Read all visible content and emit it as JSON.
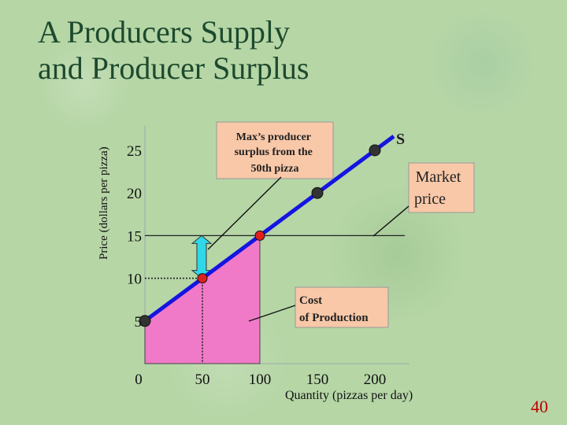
{
  "slide": {
    "title_line1": "A Producers Supply",
    "title_line2": "and Producer Surplus",
    "page_number": "40"
  },
  "chart_data": {
    "type": "line",
    "xlabel": "Quantity (pizzas per day)",
    "ylabel": "Price (dollars per pizza)",
    "xlim": [
      0,
      200
    ],
    "ylim": [
      0,
      30
    ],
    "x_ticks": [
      "0",
      "50",
      "100",
      "150",
      "200"
    ],
    "y_ticks": [
      "5",
      "10",
      "15",
      "20",
      "25"
    ],
    "series": [
      {
        "name": "S",
        "x": [
          0,
          50,
          100,
          150,
          200
        ],
        "values": [
          5,
          10,
          15,
          20,
          25
        ],
        "marked_points": [
          {
            "x": 0,
            "y": 5,
            "color": "#333333"
          },
          {
            "x": 50,
            "y": 10,
            "color": "#e02020"
          },
          {
            "x": 100,
            "y": 15,
            "color": "#e02020"
          },
          {
            "x": 150,
            "y": 20,
            "color": "#333333"
          },
          {
            "x": 200,
            "y": 25,
            "color": "#333333"
          }
        ]
      }
    ],
    "market_price": 15,
    "reference_quantity": 50,
    "reference_price": 10,
    "annotations": {
      "surplus_box": "Max’s producer surplus from the 50th pizza",
      "market_price_box": "Market price",
      "cost_box": "Cost of Production"
    },
    "colors": {
      "supply_line": "#1515e0",
      "cost_area": "#f07ac8",
      "surplus_arrow": "#2fd8e8",
      "box_fill": "#f8c8a8"
    }
  }
}
